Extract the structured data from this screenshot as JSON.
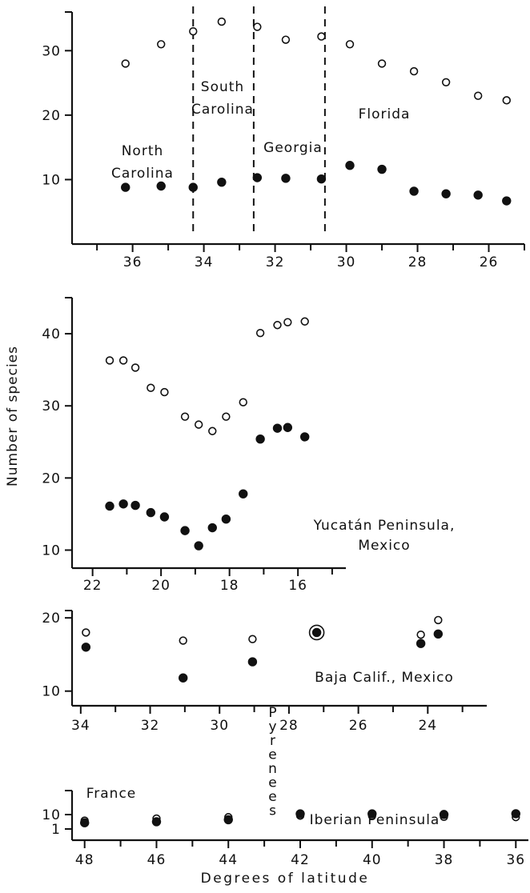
{
  "ylabel": "Number of species",
  "xlabel": "Degrees of latitude",
  "chart_data": [
    {
      "type": "scatter",
      "ylim": [
        0,
        36
      ],
      "xlim": [
        37.7,
        25
      ],
      "xticks": [
        36,
        34,
        32,
        30,
        28,
        26
      ],
      "yticks": [
        10,
        20,
        30
      ],
      "dividers": [
        34.3,
        32.6,
        30.6
      ],
      "regions": [
        {
          "lines": [
            "North",
            "Carolina"
          ]
        },
        {
          "lines": [
            "South",
            "Carolina"
          ]
        },
        {
          "lines": [
            "Georgia"
          ]
        },
        {
          "lines": [
            "Florida"
          ]
        }
      ],
      "series": [
        {
          "marker": "open",
          "points": [
            [
              36.2,
              28
            ],
            [
              35.2,
              31
            ],
            [
              34.3,
              33
            ],
            [
              33.5,
              34.5
            ],
            [
              32.5,
              33.7
            ],
            [
              31.7,
              31.7
            ],
            [
              30.7,
              32.2
            ],
            [
              29.9,
              31
            ],
            [
              29,
              28
            ],
            [
              28.1,
              26.8
            ],
            [
              27.2,
              25.1
            ],
            [
              26.3,
              23
            ],
            [
              25.5,
              22.3
            ]
          ]
        },
        {
          "marker": "filled",
          "points": [
            [
              36.2,
              8.8
            ],
            [
              35.2,
              9
            ],
            [
              34.3,
              8.8
            ],
            [
              33.5,
              9.6
            ],
            [
              32.5,
              10.3
            ],
            [
              31.7,
              10.2
            ],
            [
              30.7,
              10.1
            ],
            [
              29.9,
              12.2
            ],
            [
              29,
              11.6
            ],
            [
              28.1,
              8.2
            ],
            [
              27.2,
              7.8
            ],
            [
              26.3,
              7.6
            ],
            [
              25.5,
              6.7
            ]
          ]
        }
      ]
    },
    {
      "type": "scatter",
      "ylim": [
        7.5,
        45
      ],
      "xlim": [
        22.6,
        14.6
      ],
      "xticks": [
        22,
        20,
        18,
        16
      ],
      "yticks": [
        10,
        20,
        30,
        40
      ],
      "annotation": {
        "lines": [
          "Yucatán Peninsula,",
          "Mexico"
        ]
      },
      "series": [
        {
          "marker": "open",
          "points": [
            [
              21.5,
              36.3
            ],
            [
              21.1,
              36.3
            ],
            [
              20.75,
              35.3
            ],
            [
              20.3,
              32.5
            ],
            [
              19.9,
              31.9
            ],
            [
              19.3,
              28.5
            ],
            [
              18.9,
              27.4
            ],
            [
              18.5,
              26.5
            ],
            [
              18.1,
              28.5
            ],
            [
              17.6,
              30.5
            ],
            [
              17.1,
              40.1
            ],
            [
              16.6,
              41.2
            ],
            [
              16.3,
              41.6
            ],
            [
              15.8,
              41.7
            ]
          ]
        },
        {
          "marker": "filled",
          "points": [
            [
              21.5,
              16.1
            ],
            [
              21.1,
              16.4
            ],
            [
              20.75,
              16.2
            ],
            [
              20.3,
              15.2
            ],
            [
              19.9,
              14.6
            ],
            [
              19.3,
              12.7
            ],
            [
              18.9,
              10.6
            ],
            [
              18.5,
              13.1
            ],
            [
              18.1,
              14.3
            ],
            [
              17.6,
              17.8
            ],
            [
              17.1,
              25.4
            ],
            [
              16.6,
              26.9
            ],
            [
              16.3,
              27
            ],
            [
              15.8,
              25.7
            ]
          ]
        }
      ]
    },
    {
      "type": "scatter",
      "ylim": [
        8,
        21
      ],
      "xlim": [
        34.25,
        22.3
      ],
      "xticks": [
        34,
        32,
        30,
        28,
        26,
        24
      ],
      "yticks": [
        10,
        20
      ],
      "annotation": {
        "lines": [
          "Baja Calif., Mexico"
        ]
      },
      "series": [
        {
          "marker": "open",
          "points": [
            [
              33.85,
              18
            ],
            [
              31.05,
              16.9
            ],
            [
              29.05,
              17.1
            ],
            [
              27.2,
              18
            ],
            [
              24.2,
              17.7
            ],
            [
              23.7,
              19.7
            ]
          ]
        },
        {
          "marker": "filled",
          "points": [
            [
              33.85,
              16
            ],
            [
              31.05,
              11.8
            ],
            [
              29.05,
              14
            ],
            [
              27.2,
              18
            ],
            [
              24.2,
              16.5
            ],
            [
              23.7,
              17.8
            ]
          ]
        }
      ]
    },
    {
      "type": "scatter",
      "ylim": [
        0,
        11.8
      ],
      "xlim": [
        48.35,
        35.65
      ],
      "xticks": [
        48,
        46,
        44,
        42,
        40,
        38,
        36
      ],
      "yticks": [
        1,
        10
      ],
      "divider_label": "Pyrenees",
      "regions": [
        {
          "lines": [
            "France"
          ]
        },
        {
          "lines": [
            "Iberian Peninsula"
          ]
        }
      ],
      "series": [
        {
          "marker": "open",
          "points": [
            [
              48,
              3.8
            ],
            [
              46,
              5.3
            ],
            [
              44,
              6.6
            ],
            [
              42,
              8.4
            ],
            [
              40,
              8.2
            ],
            [
              38,
              7
            ],
            [
              36,
              6.7
            ]
          ]
        },
        {
          "marker": "filled",
          "points": [
            [
              48,
              2.7
            ],
            [
              46,
              3.2
            ],
            [
              44,
              4.4
            ],
            [
              42,
              11.3
            ],
            [
              40,
              11.3
            ],
            [
              38,
              10.2
            ],
            [
              36,
              11.5
            ]
          ]
        }
      ]
    }
  ]
}
